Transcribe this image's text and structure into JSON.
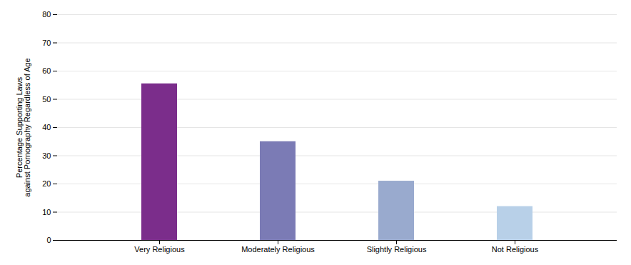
{
  "chart_data": {
    "type": "bar",
    "categories": [
      "Very Religious",
      "Moderately Religious",
      "Slightly Religious",
      "Not Religious"
    ],
    "values": [
      55.5,
      35.0,
      21.0,
      12.0
    ],
    "colors": [
      "#7b2d8b",
      "#7b7bb5",
      "#99aace",
      "#b8d0e8"
    ],
    "ylabel": "Percentage Supporting Laws\nagainst Pornography Regardless of Age",
    "ylim": [
      0,
      80
    ],
    "yticks": [
      0,
      10,
      20,
      30,
      40,
      50,
      60,
      70,
      80
    ],
    "grid": true
  }
}
